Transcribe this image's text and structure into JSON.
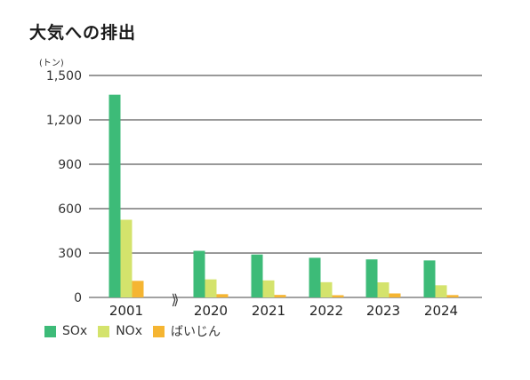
{
  "title": "大気への排出",
  "unit_label": "(トン)",
  "chart_data": {
    "type": "bar",
    "categories": [
      "2001",
      "2020",
      "2021",
      "2022",
      "2023",
      "2024"
    ],
    "series": [
      {
        "name": "SOx",
        "color": "#3dbb78",
        "values": [
          1370,
          315,
          290,
          268,
          257,
          250
        ]
      },
      {
        "name": "NOx",
        "color": "#d4e36c",
        "values": [
          525,
          122,
          115,
          103,
          102,
          82
        ]
      },
      {
        "name": "ばいじん",
        "color": "#f5b532",
        "values": [
          112,
          22,
          17,
          15,
          27,
          16
        ]
      }
    ],
    "ylim": [
      0,
      1500
    ],
    "yticks": [
      "0",
      "300",
      "600",
      "900",
      "1,200",
      "1,500"
    ],
    "axis_break_symbol": "⟫",
    "grid": true,
    "legend_position": "bottom-left"
  }
}
